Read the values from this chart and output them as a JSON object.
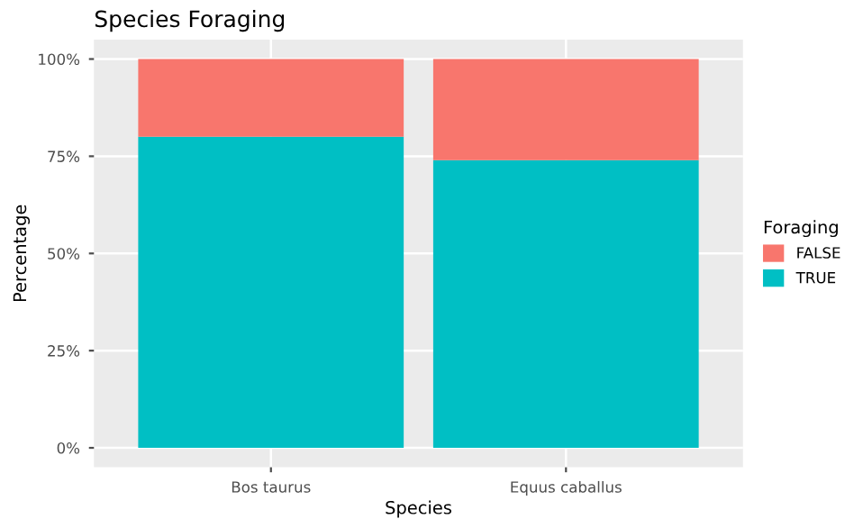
{
  "chart_data": {
    "type": "bar",
    "stacked": true,
    "title": "Species Foraging",
    "xlabel": "Species",
    "ylabel": "Percentage",
    "legend_title": "Foraging",
    "legend": "right",
    "grid": true,
    "categories": [
      "Bos taurus",
      "Equus caballus"
    ],
    "series": [
      {
        "name": "TRUE",
        "color": "#00bfc4",
        "values": [
          80,
          74
        ]
      },
      {
        "name": "FALSE",
        "color": "#f8766d",
        "values": [
          20,
          26
        ]
      }
    ],
    "ylim": [
      -5,
      105
    ],
    "yticks": [
      {
        "value": 0,
        "label": "0%"
      },
      {
        "value": 25,
        "label": "25%"
      },
      {
        "value": 50,
        "label": "50%"
      },
      {
        "value": 75,
        "label": "75%"
      },
      {
        "value": 100,
        "label": "100%"
      }
    ]
  }
}
